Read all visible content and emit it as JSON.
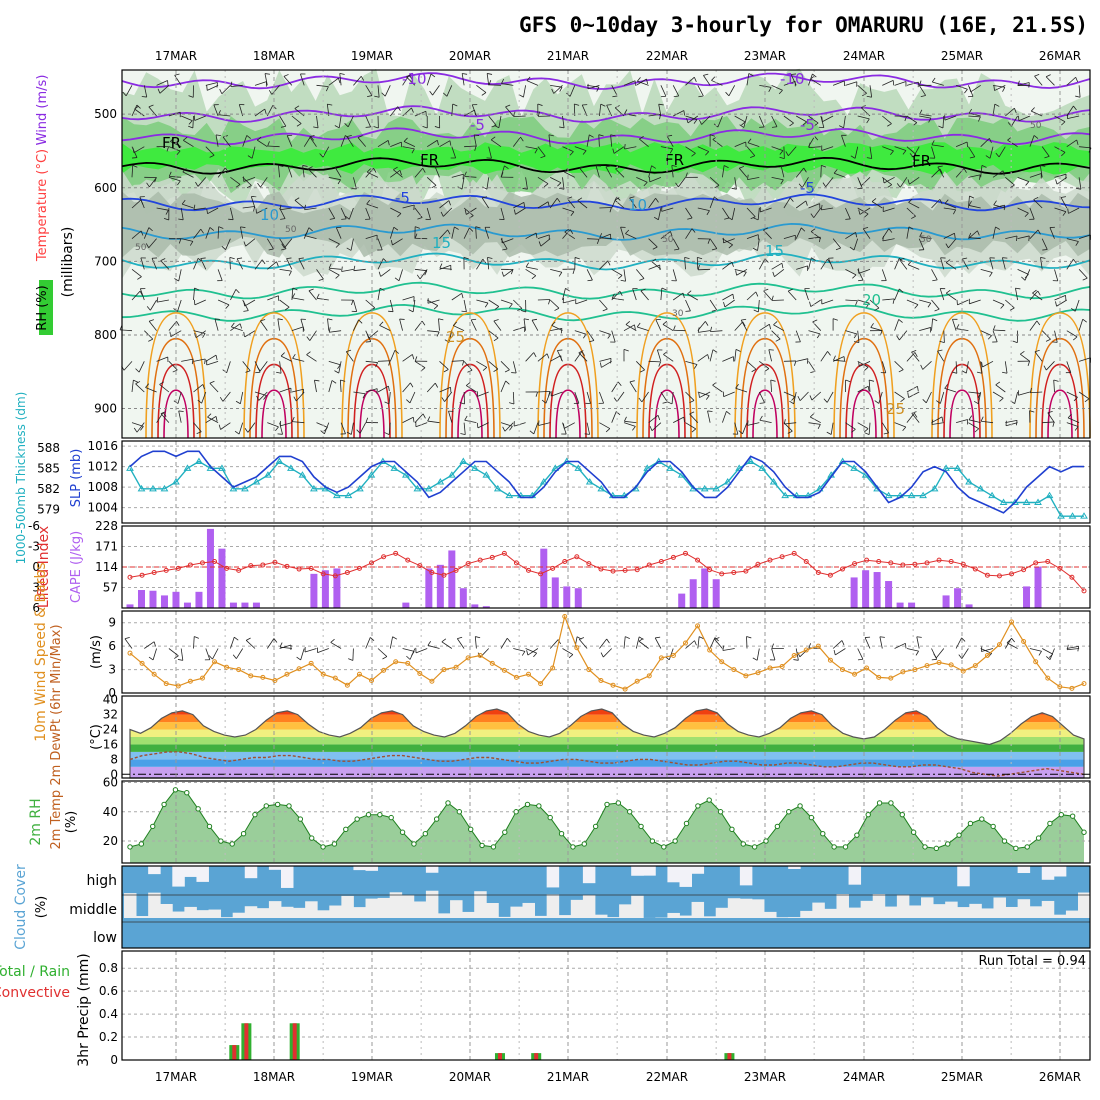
{
  "title": "GFS 0~10day 3-hourly for OMARURU (16E, 21.5S)",
  "colors": {
    "wind": "#8a2be2",
    "temperature": "#ff4040",
    "rh": "#00d000",
    "thickness": "#20b0c0",
    "slp": "#2040d0",
    "lifted": "#e03030",
    "cape": "#b060f0",
    "wind10": "#e09020",
    "rh2m": "#40b040",
    "cloud": "#5aa4d4",
    "convective": "#e03030"
  },
  "chart_data": [
    {
      "type": "contour",
      "panel": "upper-air",
      "x": [
        "17MAR",
        "18MAR",
        "19MAR",
        "20MAR",
        "21MAR",
        "22MAR",
        "23MAR",
        "24MAR",
        "25MAR",
        "26MAR"
      ],
      "ylabel_parts": [
        "RH (%)",
        "Temperature (°C)",
        "Wind (m/s)"
      ],
      "y_unit": "(millibars)",
      "y_ticks": [
        "500",
        "600",
        "700",
        "800",
        "900"
      ],
      "ylim": [
        440,
        940
      ],
      "temperature_labels": [
        "-10",
        "-10",
        "-5",
        "-5",
        "FR",
        "FR",
        "FR",
        "FR",
        "-5",
        "-5",
        "10",
        "10",
        "15",
        "15",
        "20",
        "25",
        "25"
      ],
      "rh_labels": [
        "50",
        "50",
        "50",
        "50",
        "30",
        "50"
      ]
    },
    {
      "type": "line",
      "panel": "thickness-slp",
      "ylabel_left": "1000-500mb Thickness (dm)",
      "ylabel_right": "SLP (mb)",
      "y_ticks_left": [
        "588",
        "585",
        "582",
        "579"
      ],
      "y_ticks_right": [
        "1016",
        "1012",
        "1008",
        "1004"
      ],
      "series": [
        {
          "name": "1000-500mb Thickness (dm)",
          "values": [
            585,
            582,
            582,
            582,
            583,
            585,
            586,
            585,
            585,
            582,
            582,
            583,
            584,
            586,
            585,
            584,
            582,
            582,
            581,
            581,
            582,
            584,
            586,
            585,
            584,
            582,
            582,
            583,
            584,
            586,
            585,
            584,
            582,
            581,
            581,
            581,
            583,
            585,
            586,
            585,
            583,
            582,
            581,
            581,
            582,
            585,
            586,
            585,
            584,
            582,
            582,
            582,
            583,
            585,
            586,
            585,
            583,
            581,
            581,
            581,
            582,
            584,
            586,
            585,
            584,
            582,
            581,
            581,
            581,
            581,
            582,
            585,
            585,
            583,
            582,
            581,
            580,
            580,
            580,
            580,
            581,
            578,
            578,
            578
          ]
        },
        {
          "name": "SLP (mb)",
          "values": [
            1012,
            1014,
            1015,
            1015,
            1014,
            1015,
            1015,
            1012,
            1010,
            1008,
            1009,
            1010,
            1012,
            1014,
            1014,
            1013,
            1010,
            1008,
            1007,
            1008,
            1010,
            1012,
            1013,
            1013,
            1011,
            1009,
            1006,
            1007,
            1009,
            1011,
            1013,
            1013,
            1011,
            1009,
            1006,
            1006,
            1008,
            1011,
            1013,
            1013,
            1011,
            1009,
            1006,
            1006,
            1008,
            1011,
            1013,
            1013,
            1011,
            1008,
            1006,
            1006,
            1008,
            1011,
            1014,
            1013,
            1011,
            1008,
            1006,
            1006,
            1007,
            1010,
            1013,
            1013,
            1011,
            1008,
            1005,
            1006,
            1008,
            1011,
            1012,
            1011,
            1008,
            1006,
            1005,
            1004,
            1003,
            1005,
            1008,
            1010,
            1012,
            1011,
            1012,
            1012
          ]
        }
      ]
    },
    {
      "type": "bar",
      "panel": "lifted-cape",
      "ylabel_left": "Lifted Index",
      "ylabel_right": "CAPE (J/kg)",
      "y_ticks_left": [
        "-6",
        "-3",
        "0",
        "3",
        "6"
      ],
      "y_ticks_right": [
        "228",
        "171",
        "114",
        "57"
      ],
      "series": [
        {
          "name": "Lifted Index",
          "values": [
            1.5,
            1.2,
            0.8,
            0.5,
            0.2,
            -0.3,
            -0.6,
            -0.8,
            0.2,
            0.5,
            -0.2,
            -0.3,
            -0.7,
            -0.1,
            0.3,
            0.2,
            1.0,
            1.3,
            0.8,
            0.2,
            -0.6,
            -1.5,
            -2.0,
            -1.0,
            -0.2,
            0.8,
            1.2,
            0.5,
            -0.5,
            -1.0,
            -1.4,
            -2.0,
            -0.6,
            0.5,
            1.0,
            0.2,
            -0.8,
            -1.5,
            -0.5,
            0.3,
            0.6,
            0.5,
            0.4,
            -0.3,
            -0.8,
            -1.4,
            -2.0,
            -1.0,
            0.4,
            1.0,
            0.8,
            0.6,
            -0.4,
            -1.0,
            -1.5,
            -2.0,
            -0.8,
            0.8,
            1.2,
            0.3,
            -0.5,
            -1.0,
            -0.8,
            -0.6,
            -0.3,
            -0.4,
            -0.6,
            -1.0,
            -0.8,
            -0.4,
            0.3,
            1.2,
            1.3,
            1.0,
            0.4,
            -0.6,
            -0.8,
            0.2,
            1.5,
            3.5
          ]
        },
        {
          "name": "CAPE (J/kg)",
          "values": [
            10,
            50,
            48,
            35,
            45,
            15,
            45,
            220,
            165,
            15,
            15,
            15,
            0,
            0,
            0,
            0,
            95,
            105,
            110,
            0,
            0,
            0,
            0,
            0,
            15,
            0,
            110,
            120,
            160,
            55,
            10,
            5,
            0,
            0,
            0,
            0,
            165,
            85,
            60,
            55,
            0,
            0,
            0,
            0,
            0,
            0,
            0,
            0,
            40,
            80,
            110,
            80,
            0,
            0,
            0,
            0,
            0,
            0,
            0,
            0,
            0,
            0,
            0,
            85,
            105,
            100,
            75,
            15,
            15,
            0,
            0,
            35,
            55,
            10,
            0,
            0,
            0,
            0,
            60,
            115,
            0,
            0,
            0,
            0
          ]
        }
      ]
    },
    {
      "type": "line",
      "panel": "wind10m",
      "ylabel": "10m Wind Speed & Barbs",
      "y_unit": "(m/s)",
      "y_ticks": [
        "9",
        "6",
        "3",
        "0"
      ],
      "series": [
        {
          "name": "10m Wind Speed",
          "values": [
            5.1,
            3.8,
            2.4,
            1.2,
            0.9,
            1.5,
            1.9,
            4.0,
            3.3,
            3.0,
            2.2,
            2.0,
            1.6,
            2.4,
            3.1,
            3.8,
            2.4,
            1.9,
            1.0,
            2.4,
            1.6,
            2.9,
            4.0,
            3.8,
            2.5,
            1.5,
            3.0,
            3.3,
            4.5,
            4.8,
            3.8,
            2.9,
            2.0,
            2.4,
            1.2,
            3.2,
            9.8,
            5.8,
            3.0,
            1.6,
            1.0,
            0.5,
            1.5,
            2.2,
            4.5,
            4.8,
            6.4,
            8.6,
            5.5,
            4.0,
            3.0,
            2.2,
            2.6,
            3.2,
            3.4,
            4.8,
            5.5,
            6.0,
            4.2,
            3.0,
            2.4,
            3.2,
            2.0,
            1.9,
            2.7,
            3.0,
            3.5,
            3.9,
            3.6,
            2.8,
            3.5,
            4.8,
            6.2,
            9.1,
            6.6,
            4.0,
            1.9,
            0.8,
            0.6,
            1.2
          ]
        }
      ]
    },
    {
      "type": "area",
      "panel": "temp2m",
      "ylabel": "2m Temp 2m DewPt (6hr Min/Max)",
      "y_unit": "(°C)",
      "y_ticks": [
        "40",
        "32",
        "24",
        "16",
        "8",
        "0"
      ],
      "series": [
        {
          "name": "2m Temp",
          "values": [
            24,
            22,
            25,
            30,
            33,
            34,
            32,
            26,
            23,
            21,
            20,
            21,
            24,
            29,
            33,
            34,
            32,
            27,
            23,
            21,
            20,
            22,
            25,
            30,
            33,
            34,
            32,
            26,
            23,
            21,
            20,
            22,
            26,
            31,
            34,
            35,
            33,
            27,
            23,
            21,
            20,
            22,
            26,
            31,
            34,
            35,
            33,
            27,
            23,
            21,
            20,
            22,
            25,
            30,
            34,
            35,
            33,
            27,
            23,
            21,
            20,
            22,
            25,
            30,
            33,
            34,
            32,
            26,
            22,
            20,
            19,
            20,
            24,
            29,
            33,
            34,
            31,
            25,
            21,
            19,
            18,
            17,
            16,
            18,
            22,
            27,
            31,
            33,
            31,
            26,
            21,
            19
          ]
        },
        {
          "name": "2m DewPt",
          "values": [
            8,
            10,
            11,
            12,
            12,
            11,
            9,
            8,
            7,
            8,
            9,
            9,
            10,
            10,
            9,
            8,
            8,
            7,
            7,
            8,
            9,
            10,
            10,
            9,
            8,
            7,
            7,
            8,
            9,
            9,
            8,
            7,
            6,
            6,
            7,
            8,
            8,
            7,
            6,
            6,
            7,
            8,
            8,
            7,
            6,
            5,
            5,
            6,
            7,
            7,
            6,
            5,
            5,
            6,
            6,
            5,
            4,
            4,
            5,
            6,
            6,
            5,
            4,
            4,
            5,
            5,
            4,
            3,
            1,
            0,
            -1,
            0,
            1,
            2,
            3,
            2,
            1,
            0
          ]
        }
      ]
    },
    {
      "type": "area",
      "panel": "rh2m",
      "ylabel": "2m RH",
      "y_unit": "(%)",
      "y_ticks": [
        "60",
        "40",
        "20"
      ],
      "series": [
        {
          "name": "2m RH",
          "values": [
            16,
            18,
            30,
            45,
            55,
            53,
            42,
            30,
            20,
            18,
            25,
            38,
            44,
            45,
            44,
            35,
            22,
            16,
            18,
            28,
            35,
            38,
            38,
            36,
            26,
            18,
            25,
            35,
            46,
            40,
            28,
            17,
            16,
            26,
            40,
            45,
            44,
            36,
            25,
            16,
            18,
            30,
            45,
            46,
            40,
            30,
            20,
            16,
            20,
            32,
            44,
            48,
            40,
            28,
            18,
            16,
            20,
            30,
            40,
            44,
            36,
            25,
            16,
            16,
            24,
            38,
            46,
            46,
            38,
            26,
            16,
            15,
            18,
            24,
            32,
            35,
            30,
            20,
            15,
            16,
            22,
            32,
            38,
            37,
            26
          ]
        }
      ]
    },
    {
      "type": "heatmap",
      "panel": "cloud",
      "ylabel": "Cloud Cover",
      "y_unit": "(%)",
      "y_ticks": [
        "high",
        "middle",
        "low"
      ]
    },
    {
      "type": "bar",
      "panel": "precip",
      "ylabel": "3hr Precip (mm)",
      "legend": [
        "Total / Rain",
        "Convective"
      ],
      "y_ticks": [
        "0.8",
        "0.6",
        "0.4",
        "0.2",
        "0"
      ],
      "annotation": "Run Total = 0.94",
      "series": [
        {
          "name": "Total / Rain",
          "x_index": [
            4,
            5,
            9,
            26,
            29,
            45
          ],
          "values": [
            0.13,
            0.32,
            0.32,
            0.06,
            0.06,
            0.06
          ]
        }
      ]
    }
  ]
}
